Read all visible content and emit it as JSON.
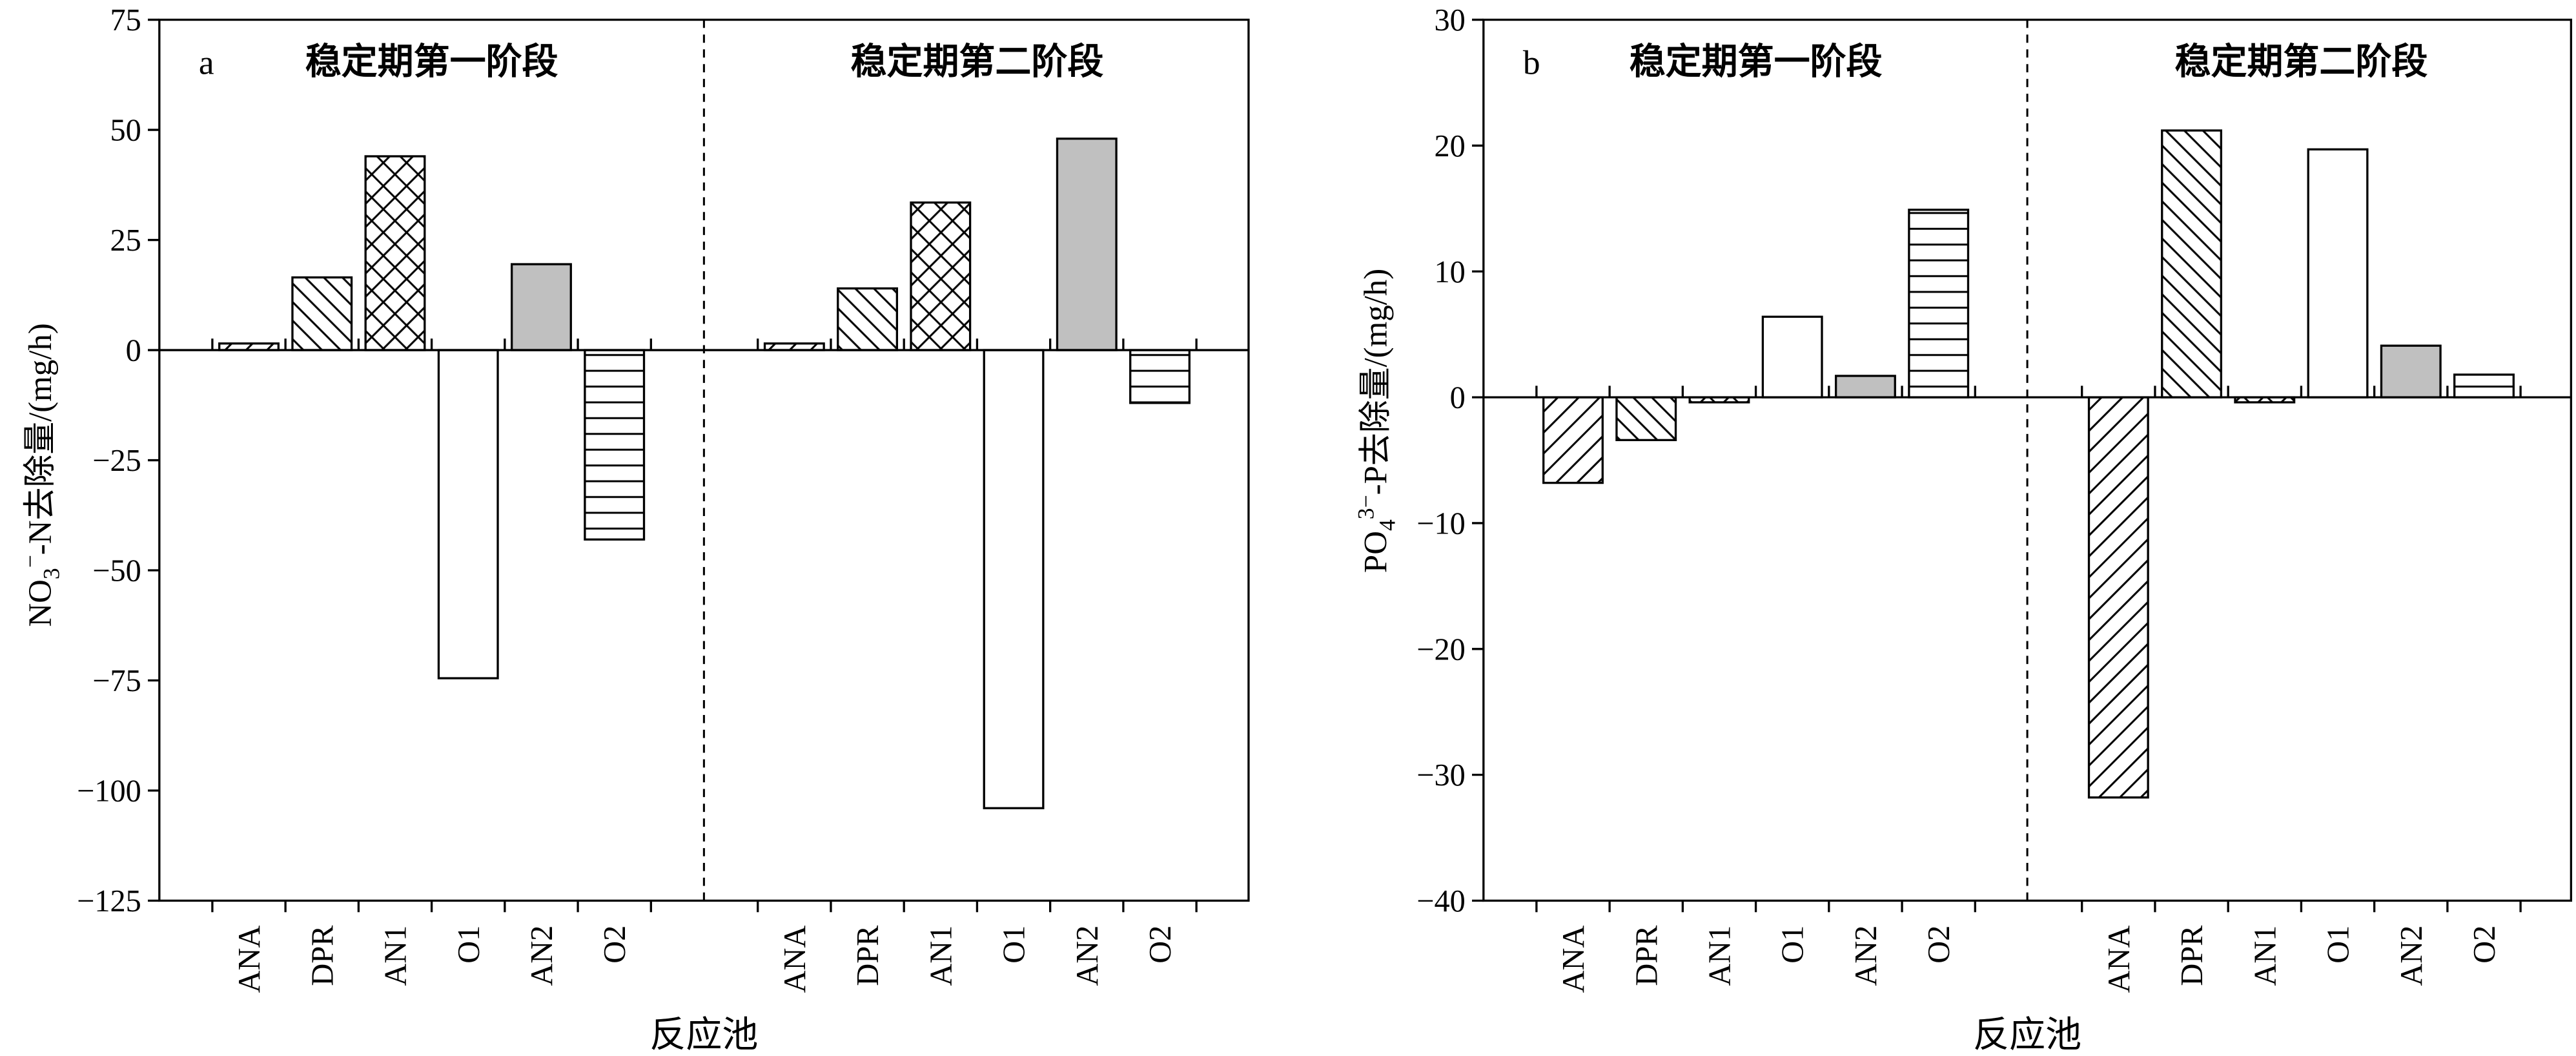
{
  "chart_data": [
    {
      "type": "bar",
      "panel_label": "a",
      "categories": [
        "ANA",
        "DPR",
        "AN1",
        "O1",
        "AN2",
        "O2"
      ],
      "series": [
        {
          "name": "稳定期第一阶段",
          "values": [
            1.5,
            16.5,
            44,
            -74.5,
            19.5,
            -43
          ]
        },
        {
          "name": "稳定期第二阶段",
          "values": [
            1.5,
            14,
            33.5,
            -104,
            48,
            -12
          ]
        }
      ],
      "xlabel": "反应池",
      "ylabel": {
        "base": "NO",
        "sub": "3",
        "sup": "−",
        "rest": "-N去除量/(mg/h)"
      },
      "ylim": [
        -125,
        75
      ],
      "yticks": [
        75,
        50,
        25,
        0,
        -25,
        -50,
        -75,
        -100,
        -125
      ],
      "ytick_labels": [
        "75",
        "50",
        "25",
        "0",
        "−25",
        "−50",
        "−75",
        "−100",
        "−125"
      ],
      "grid": false,
      "legend": false
    },
    {
      "type": "bar",
      "panel_label": "b",
      "categories": [
        "ANA",
        "DPR",
        "AN1",
        "O1",
        "AN2",
        "O2"
      ],
      "series": [
        {
          "name": "稳定期第一阶段",
          "values": [
            -6.8,
            -3.4,
            -0.4,
            6.4,
            1.7,
            14.9
          ]
        },
        {
          "name": "稳定期第二阶段",
          "values": [
            -31.8,
            21.2,
            -0.4,
            19.7,
            4.1,
            1.8
          ]
        }
      ],
      "xlabel": "反应池",
      "ylabel": {
        "base": "PO",
        "sub": "4",
        "sup": "3−",
        "rest": "-P去除量/(mg/h)"
      },
      "ylim": [
        -40,
        30
      ],
      "yticks": [
        30,
        20,
        10,
        0,
        -10,
        -20,
        -30,
        -40
      ],
      "ytick_labels": [
        "30",
        "20",
        "10",
        "0",
        "−10",
        "−20",
        "−30",
        "−40"
      ],
      "grid": false,
      "legend": false
    }
  ]
}
